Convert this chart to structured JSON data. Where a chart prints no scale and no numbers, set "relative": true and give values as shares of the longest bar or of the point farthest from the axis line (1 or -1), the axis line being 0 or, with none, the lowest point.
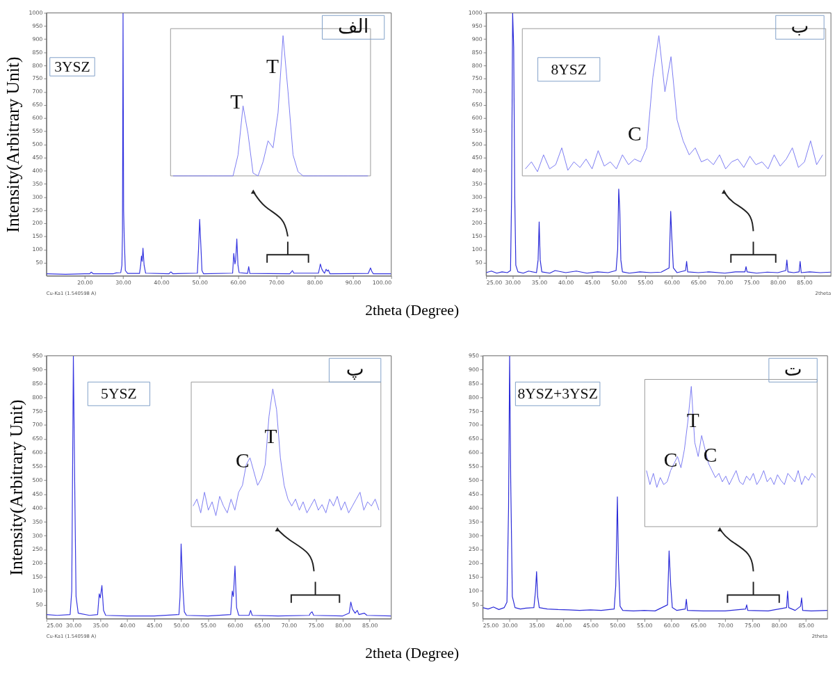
{
  "chart_data": [
    {
      "type": "line",
      "title": "الف",
      "ylabel": "Intensity(Arbitrary Unit)",
      "xlabel": "2theta (Degree)",
      "xlim": [
        10,
        100
      ],
      "xticks": [
        {
          "value": 20,
          "label": "20.00"
        },
        {
          "value": 30,
          "label": "30.00"
        },
        {
          "value": 40,
          "label": "40.00"
        },
        {
          "value": 50,
          "label": "50.00"
        },
        {
          "value": 60,
          "label": "60.00"
        },
        {
          "value": 70,
          "label": "70.00"
        },
        {
          "value": 80,
          "label": "80.00"
        },
        {
          "value": 90,
          "label": "90.00"
        },
        {
          "value": 100,
          "label": "100.00"
        }
      ],
      "ylim": [
        0,
        1000
      ],
      "yticks": [
        50,
        100,
        150,
        200,
        250,
        300,
        350,
        400,
        450,
        500,
        550,
        600,
        650,
        700,
        750,
        800,
        850,
        900,
        950,
        1000
      ],
      "annotations": [
        "Cu-Ka1 (1.540598 A)"
      ],
      "series": [
        {
          "name": "3YSZ",
          "color": "#3535e0",
          "x": [
            10,
            15,
            20,
            21.3,
            21.7,
            22.2,
            27.5,
            28.2,
            29.4,
            29.7,
            29.85,
            30.0,
            30.15,
            30.3,
            30.6,
            31.2,
            34.3,
            34.6,
            34.8,
            35.0,
            35.2,
            35.5,
            35.9,
            42,
            42.5,
            43,
            49.4,
            49.7,
            50.0,
            50.3,
            50.6,
            51,
            58.6,
            58.9,
            59.2,
            59.4,
            59.7,
            60.0,
            60.3,
            62.5,
            62.8,
            63.1,
            73.5,
            73.9,
            74.2,
            74.6,
            81,
            81.3,
            81.5,
            81.9,
            82.3,
            82.6,
            83,
            83.3,
            83.6,
            84,
            94,
            94.3,
            94.6,
            94.9,
            95.3,
            100
          ],
          "values": [
            8,
            6,
            8,
            8,
            14,
            8,
            8,
            11,
            12,
            40,
            160,
            1000,
            250,
            150,
            20,
            9,
            9,
            40,
            75,
            55,
            105,
            40,
            10,
            8,
            15,
            8,
            10,
            100,
            215,
            120,
            20,
            8,
            10,
            85,
            45,
            60,
            140,
            40,
            12,
            9,
            35,
            9,
            8,
            14,
            20,
            10,
            10,
            30,
            45,
            25,
            15,
            10,
            25,
            18,
            22,
            8,
            9,
            20,
            30,
            18,
            8,
            8
          ]
        }
      ]
    },
    {
      "type": "line",
      "relative": true,
      "categories": [
        null,
        null,
        null,
        null,
        null,
        null,
        null,
        null,
        null,
        null,
        null,
        null,
        null,
        null,
        null,
        null,
        null,
        null,
        null,
        null,
        null,
        null,
        null,
        null,
        null,
        null,
        null,
        null,
        null,
        null,
        null,
        null,
        null,
        null,
        null,
        null,
        null,
        null,
        null,
        null
      ],
      "annotations": [
        "T",
        "T"
      ],
      "series": [
        {
          "color": "#7a7af2",
          "values": [
            0,
            0,
            0,
            0,
            0,
            0,
            0,
            0,
            0,
            0,
            0,
            0,
            0,
            0.15,
            0.5,
            0.3,
            0.02,
            0,
            0.1,
            0.25,
            0.2,
            0.45,
            1.0,
            0.6,
            0.15,
            0.03,
            0,
            0,
            0,
            0,
            0,
            0,
            0,
            0,
            0,
            0,
            0,
            0,
            0,
            0
          ]
        }
      ]
    },
    {
      "type": "line",
      "title": "ب",
      "xlim": [
        25,
        90
      ],
      "xticks": [
        {
          "value": 25,
          "label": "25.00"
        },
        {
          "value": 30,
          "label": "30.00"
        },
        {
          "value": 35,
          "label": "35.00"
        },
        {
          "value": 40,
          "label": "40.00"
        },
        {
          "value": 45,
          "label": "45.00"
        },
        {
          "value": 50,
          "label": "50.00"
        },
        {
          "value": 55,
          "label": "55.00"
        },
        {
          "value": 60,
          "label": "60.00"
        },
        {
          "value": 65,
          "label": "65.00"
        },
        {
          "value": 70,
          "label": "70.00"
        },
        {
          "value": 75,
          "label": "75.00"
        },
        {
          "value": 80,
          "label": "80.00"
        },
        {
          "value": 85,
          "label": "85.00"
        }
      ],
      "ylim": [
        0,
        1000
      ],
      "yticks": [
        50,
        100,
        150,
        200,
        250,
        300,
        350,
        400,
        450,
        500,
        550,
        600,
        650,
        700,
        750,
        800,
        850,
        900,
        950,
        1000
      ],
      "annotations": [
        "2theta"
      ],
      "series": [
        {
          "name": "8YSZ",
          "color": "#2a2ad8",
          "x": [
            25,
            26,
            27,
            28,
            29,
            29.6,
            29.8,
            30.0,
            30.2,
            30.4,
            30.6,
            31,
            32,
            33,
            34.5,
            34.8,
            35.0,
            35.2,
            35.5,
            37,
            38,
            40,
            42,
            44,
            46,
            48,
            49.5,
            49.8,
            50.0,
            50.2,
            50.4,
            50.7,
            52,
            54,
            56,
            58,
            59.5,
            59.8,
            60.0,
            60.3,
            61,
            62.6,
            62.8,
            63.0,
            65,
            67,
            70,
            72,
            73.8,
            74.0,
            74.2,
            76,
            78,
            80,
            81.5,
            81.7,
            81.9,
            83,
            84.0,
            84.2,
            84.4,
            86,
            88,
            90
          ],
          "values": [
            12,
            18,
            10,
            15,
            12,
            20,
            300,
            1000,
            870,
            300,
            40,
            15,
            10,
            18,
            12,
            60,
            205,
            60,
            15,
            10,
            20,
            12,
            18,
            10,
            15,
            12,
            20,
            100,
            330,
            250,
            60,
            15,
            10,
            15,
            12,
            14,
            30,
            245,
            150,
            30,
            12,
            20,
            55,
            15,
            12,
            15,
            10,
            15,
            15,
            35,
            15,
            10,
            14,
            12,
            20,
            60,
            15,
            12,
            15,
            55,
            12,
            15,
            12,
            14
          ]
        }
      ]
    },
    {
      "type": "line",
      "relative": true,
      "categories": [
        null,
        null,
        null,
        null,
        null,
        null,
        null,
        null,
        null,
        null,
        null,
        null,
        null,
        null,
        null,
        null,
        null,
        null,
        null,
        null,
        null,
        null,
        null,
        null,
        null,
        null,
        null,
        null,
        null,
        null,
        null,
        null,
        null,
        null,
        null,
        null,
        null,
        null,
        null,
        null,
        null,
        null,
        null,
        null,
        null,
        null,
        null,
        null,
        null,
        null
      ],
      "annotations": [
        "C"
      ],
      "series": [
        {
          "color": "#7a7af2",
          "values": [
            0.05,
            0.1,
            0.03,
            0.15,
            0.05,
            0.08,
            0.2,
            0.04,
            0.1,
            0.06,
            0.12,
            0.05,
            0.18,
            0.07,
            0.1,
            0.05,
            0.15,
            0.08,
            0.12,
            0.1,
            0.2,
            0.7,
            1.0,
            0.6,
            0.85,
            0.4,
            0.25,
            0.15,
            0.2,
            0.1,
            0.12,
            0.08,
            0.15,
            0.05,
            0.1,
            0.12,
            0.06,
            0.14,
            0.08,
            0.1,
            0.05,
            0.15,
            0.07,
            0.12,
            0.2,
            0.06,
            0.1,
            0.25,
            0.08,
            0.15
          ]
        }
      ]
    },
    {
      "type": "line",
      "title": "پ",
      "ylabel": "Intensity(Arbitrary Unit)",
      "xlabel": "2theta (Degree)",
      "xlim": [
        25,
        89
      ],
      "xticks": [
        {
          "value": 25,
          "label": "25.00"
        },
        {
          "value": 30,
          "label": "30.00"
        },
        {
          "value": 35,
          "label": "35.00"
        },
        {
          "value": 40,
          "label": "40.00"
        },
        {
          "value": 45,
          "label": "45.00"
        },
        {
          "value": 50,
          "label": "50.00"
        },
        {
          "value": 55,
          "label": "55.00"
        },
        {
          "value": 60,
          "label": "60.00"
        },
        {
          "value": 65,
          "label": "65.00"
        },
        {
          "value": 70,
          "label": "70.00"
        },
        {
          "value": 75,
          "label": "75.00"
        },
        {
          "value": 80,
          "label": "80.00"
        },
        {
          "value": 85,
          "label": "85.00"
        }
      ],
      "ylim": [
        0,
        950
      ],
      "yticks": [
        50,
        100,
        150,
        200,
        250,
        300,
        350,
        400,
        450,
        500,
        550,
        600,
        650,
        700,
        750,
        800,
        850,
        900,
        950
      ],
      "annotations": [
        "Cu-Ka1 (1.540598 A)"
      ],
      "series": [
        {
          "name": "5YSZ",
          "color": "#3535e0",
          "x": [
            25,
            27,
            29.4,
            29.7,
            30.0,
            30.3,
            30.5,
            30.9,
            33,
            34.5,
            34.8,
            35.0,
            35.3,
            35.6,
            36,
            40,
            45,
            49.6,
            49.8,
            50.0,
            50.3,
            50.6,
            51,
            55,
            59.2,
            59.5,
            59.7,
            60.0,
            60.3,
            60.7,
            62.6,
            62.9,
            63.2,
            68,
            73.8,
            74.0,
            74.3,
            74.6,
            80,
            81.2,
            81.5,
            81.8,
            82.3,
            82.7,
            83,
            84,
            84.5,
            89
          ],
          "values": [
            15,
            12,
            15,
            100,
            950,
            400,
            80,
            20,
            12,
            15,
            90,
            75,
            120,
            30,
            12,
            10,
            10,
            15,
            80,
            270,
            120,
            25,
            12,
            10,
            15,
            100,
            80,
            190,
            40,
            12,
            12,
            30,
            12,
            10,
            12,
            20,
            25,
            12,
            10,
            20,
            60,
            35,
            20,
            30,
            15,
            20,
            12,
            10
          ]
        }
      ]
    },
    {
      "type": "line",
      "relative": true,
      "categories": [
        null,
        null,
        null,
        null,
        null,
        null,
        null,
        null,
        null,
        null,
        null,
        null,
        null,
        null,
        null,
        null,
        null,
        null,
        null,
        null,
        null,
        null,
        null,
        null,
        null,
        null,
        null,
        null,
        null,
        null,
        null,
        null,
        null,
        null,
        null,
        null,
        null,
        null,
        null,
        null,
        null,
        null,
        null,
        null,
        null,
        null,
        null,
        null,
        null,
        null
      ],
      "annotations": [
        "C",
        "T"
      ],
      "series": [
        {
          "color": "#7a7af2",
          "values": [
            0.15,
            0.2,
            0.1,
            0.25,
            0.12,
            0.18,
            0.08,
            0.22,
            0.15,
            0.1,
            0.2,
            0.12,
            0.25,
            0.3,
            0.45,
            0.5,
            0.4,
            0.3,
            0.35,
            0.45,
            0.8,
            1.0,
            0.85,
            0.5,
            0.3,
            0.2,
            0.15,
            0.2,
            0.12,
            0.18,
            0.1,
            0.15,
            0.2,
            0.12,
            0.16,
            0.1,
            0.2,
            0.15,
            0.22,
            0.12,
            0.18,
            0.1,
            0.15,
            0.2,
            0.25,
            0.12,
            0.18,
            0.15,
            0.2,
            0.12
          ]
        }
      ]
    },
    {
      "type": "line",
      "title": "ت",
      "xlim": [
        25,
        89
      ],
      "xticks": [
        {
          "value": 25,
          "label": "25.00"
        },
        {
          "value": 30,
          "label": "30.00"
        },
        {
          "value": 35,
          "label": "35.00"
        },
        {
          "value": 40,
          "label": "40.00"
        },
        {
          "value": 45,
          "label": "45.00"
        },
        {
          "value": 50,
          "label": "50.00"
        },
        {
          "value": 55,
          "label": "55.00"
        },
        {
          "value": 60,
          "label": "60.00"
        },
        {
          "value": 65,
          "label": "65.00"
        },
        {
          "value": 70,
          "label": "70.00"
        },
        {
          "value": 75,
          "label": "75.00"
        },
        {
          "value": 80,
          "label": "80.00"
        },
        {
          "value": 85,
          "label": "85.00"
        }
      ],
      "ylim": [
        0,
        950
      ],
      "yticks": [
        50,
        100,
        150,
        200,
        250,
        300,
        350,
        400,
        450,
        500,
        550,
        600,
        650,
        700,
        750,
        800,
        850,
        900,
        950
      ],
      "annotations": [
        "2theta"
      ],
      "series": [
        {
          "name": "8YSZ+3YSZ",
          "color": "#2a2ad8",
          "x": [
            25,
            26,
            27,
            28,
            29,
            29.5,
            29.8,
            30.0,
            30.2,
            30.5,
            31,
            32,
            33,
            34.5,
            34.8,
            35.0,
            35.2,
            35.5,
            37,
            39,
            41,
            43,
            45,
            47,
            49.4,
            49.7,
            50.0,
            50.2,
            50.5,
            51,
            53,
            55,
            57,
            59.3,
            59.6,
            59.9,
            60.2,
            61,
            62.6,
            62.8,
            63.0,
            66,
            70,
            73.8,
            74.0,
            74.2,
            78,
            81.4,
            81.6,
            81.8,
            83,
            84.0,
            84.2,
            84.4,
            86,
            89
          ],
          "values": [
            40,
            35,
            42,
            33,
            40,
            60,
            400,
            950,
            500,
            80,
            40,
            35,
            38,
            40,
            100,
            170,
            80,
            40,
            35,
            33,
            32,
            30,
            32,
            30,
            35,
            120,
            440,
            200,
            45,
            30,
            28,
            30,
            28,
            50,
            245,
            120,
            40,
            30,
            35,
            70,
            30,
            28,
            28,
            35,
            50,
            30,
            28,
            40,
            100,
            40,
            30,
            45,
            75,
            30,
            28,
            30
          ]
        }
      ]
    },
    {
      "type": "line",
      "relative": true,
      "categories": [
        null,
        null,
        null,
        null,
        null,
        null,
        null,
        null,
        null,
        null,
        null,
        null,
        null,
        null,
        null,
        null,
        null,
        null,
        null,
        null,
        null,
        null,
        null,
        null,
        null,
        null,
        null,
        null,
        null,
        null,
        null,
        null,
        null,
        null,
        null,
        null,
        null,
        null,
        null,
        null,
        null,
        null,
        null,
        null,
        null,
        null,
        null,
        null,
        null,
        null
      ],
      "annotations": [
        "C",
        "T",
        "C"
      ],
      "series": [
        {
          "color": "#7a7af2",
          "values": [
            0.4,
            0.3,
            0.38,
            0.28,
            0.35,
            0.3,
            0.32,
            0.4,
            0.45,
            0.5,
            0.42,
            0.55,
            0.75,
            1.0,
            0.6,
            0.5,
            0.65,
            0.55,
            0.45,
            0.4,
            0.35,
            0.38,
            0.32,
            0.36,
            0.3,
            0.35,
            0.4,
            0.32,
            0.3,
            0.36,
            0.33,
            0.38,
            0.3,
            0.34,
            0.4,
            0.32,
            0.35,
            0.3,
            0.37,
            0.33,
            0.3,
            0.38,
            0.35,
            0.32,
            0.4,
            0.3,
            0.36,
            0.33,
            0.38,
            0.35
          ]
        }
      ]
    }
  ]
}
